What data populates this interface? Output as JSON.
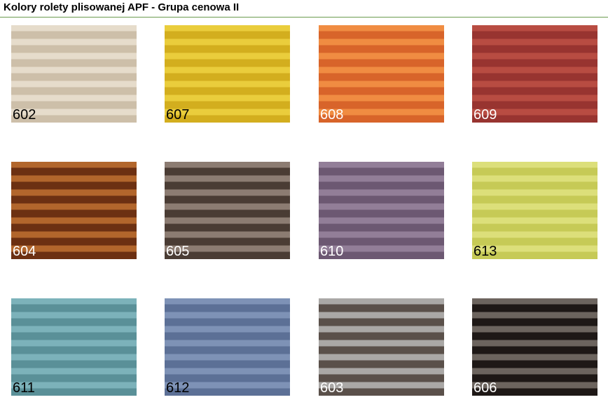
{
  "title": "Kolory rolety plisowanej APF - Grupa cenowa II",
  "accent_rule_color": "#6b9a4e",
  "swatches": [
    {
      "code": "602",
      "light": "#e6dccb",
      "dark": "#cdbfa9",
      "label_color": "#000000"
    },
    {
      "code": "607",
      "light": "#eacd3c",
      "dark": "#d3ae1e",
      "label_color": "#000000"
    },
    {
      "code": "608",
      "light": "#f08c42",
      "dark": "#d8642a",
      "label_color": "#ffffff"
    },
    {
      "code": "609",
      "light": "#b84c42",
      "dark": "#983430",
      "label_color": "#ffffff"
    },
    {
      "code": "604",
      "light": "#b2662c",
      "dark": "#6c3012",
      "label_color": "#ffffff"
    },
    {
      "code": "605",
      "light": "#8c7c72",
      "dark": "#4a3c34",
      "label_color": "#ffffff"
    },
    {
      "code": "610",
      "light": "#927e98",
      "dark": "#6c5872",
      "label_color": "#ffffff"
    },
    {
      "code": "613",
      "light": "#dcdf7a",
      "dark": "#c6ca56",
      "label_color": "#000000"
    },
    {
      "code": "611",
      "light": "#7cb2ba",
      "dark": "#5a9098",
      "label_color": "#000000"
    },
    {
      "code": "612",
      "light": "#7e92b6",
      "dark": "#5c7096",
      "label_color": "#000000"
    },
    {
      "code": "603",
      "light": "#aaa8a6",
      "dark": "#5a504a",
      "label_color": "#ffffff"
    },
    {
      "code": "606",
      "light": "#6c645e",
      "dark": "#1e1816",
      "label_color": "#ffffff"
    }
  ]
}
